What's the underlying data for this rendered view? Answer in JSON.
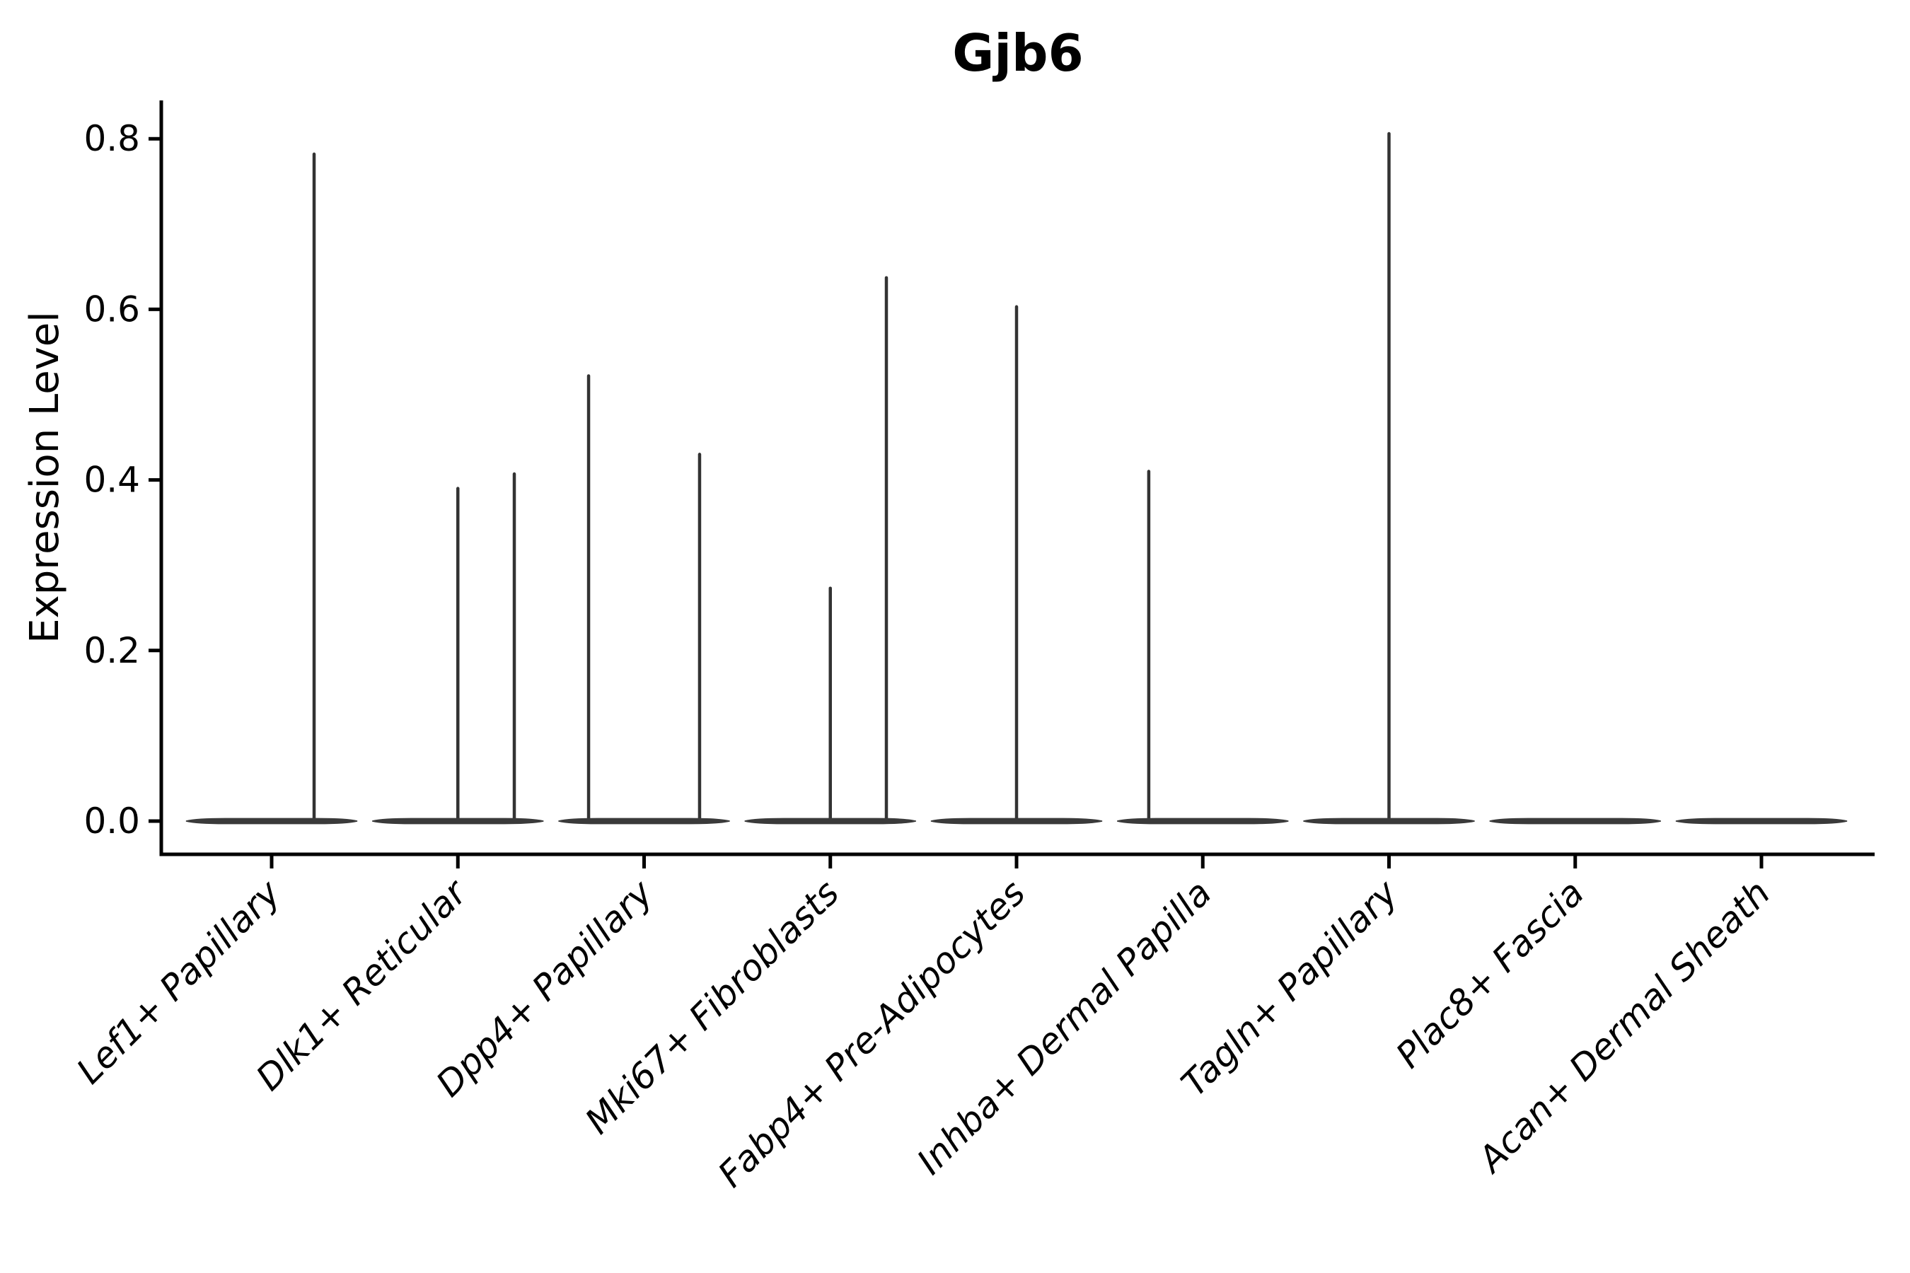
{
  "chart_data": {
    "type": "violin",
    "title": "Gjb6",
    "xlabel": "",
    "ylabel": "Expression Level",
    "categories": [
      "Lef1+ Papillary",
      "Dlk1+ Reticular",
      "Dpp4+ Papillary",
      "Mki67+ Fibroblasts",
      "Fabp4+ Pre-Adipocytes",
      "Inhba+ Dermal Papilla",
      "Tagln+ Papillary",
      "Plac8+ Fascia",
      "Acan+ Dermal Sheath"
    ],
    "y_ticks": [
      0.0,
      0.2,
      0.4,
      0.6,
      0.8
    ],
    "y_tick_labels": [
      "0.0",
      "0.2",
      "0.4",
      "0.6",
      "0.8"
    ],
    "ylim": [
      0.0,
      0.845
    ],
    "grid": false,
    "legend_position": "none",
    "x_label_rotation_deg": 45,
    "x_label_font_style": "italic",
    "series": [
      {
        "category": "Lef1+ Papillary",
        "baseline_value": 0.0,
        "spikes": [
          {
            "value": 0.782,
            "jitter": 0.228
          }
        ]
      },
      {
        "category": "Dlk1+ Reticular",
        "baseline_value": 0.0,
        "spikes": [
          {
            "value": 0.39,
            "jitter": 0.0
          },
          {
            "value": 0.407,
            "jitter": 0.303
          }
        ]
      },
      {
        "category": "Dpp4+ Papillary",
        "baseline_value": 0.0,
        "spikes": [
          {
            "value": 0.522,
            "jitter": -0.298
          },
          {
            "value": 0.43,
            "jitter": 0.298
          }
        ]
      },
      {
        "category": "Mki67+ Fibroblasts",
        "baseline_value": 0.0,
        "spikes": [
          {
            "value": 0.273,
            "jitter": 0.0
          },
          {
            "value": 0.637,
            "jitter": 0.301
          }
        ]
      },
      {
        "category": "Fabp4+ Pre-Adipocytes",
        "baseline_value": 0.0,
        "spikes": [
          {
            "value": 0.603,
            "jitter": 0.0
          }
        ]
      },
      {
        "category": "Inhba+ Dermal Papilla",
        "baseline_value": 0.0,
        "spikes": [
          {
            "value": 0.41,
            "jitter": -0.29
          }
        ]
      },
      {
        "category": "Tagln+ Papillary",
        "baseline_value": 0.0,
        "spikes": [
          {
            "value": 0.806,
            "jitter": 0.0
          }
        ]
      },
      {
        "category": "Plac8+ Fascia",
        "baseline_value": 0.0,
        "spikes": []
      },
      {
        "category": "Acan+ Dermal Sheath",
        "baseline_value": 0.0,
        "spikes": []
      }
    ],
    "colors": {
      "violin_fill": "#3a3a3a",
      "spike_stroke": "#333333",
      "axis": "#000000",
      "text": "#000000",
      "background": "#ffffff"
    }
  }
}
